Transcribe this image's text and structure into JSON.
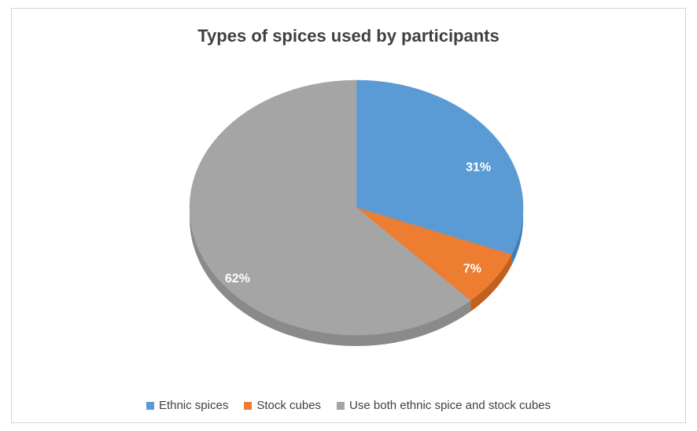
{
  "chart_data": {
    "type": "pie",
    "title": "Types of spices used by participants",
    "categories": [
      "Ethnic spices",
      "Stock cubes",
      "Use both ethnic spice and stock cubes"
    ],
    "values": [
      31,
      7,
      62
    ],
    "labels": [
      "31%",
      "7%",
      "62%"
    ],
    "colors": [
      "#5b9bd5",
      "#ed7d31",
      "#a5a5a5"
    ],
    "side_colors": [
      "#3f7fb8",
      "#c2601d",
      "#8a8a8a"
    ],
    "start_angle_deg": 0,
    "three_d": true,
    "legend_position": "bottom"
  }
}
